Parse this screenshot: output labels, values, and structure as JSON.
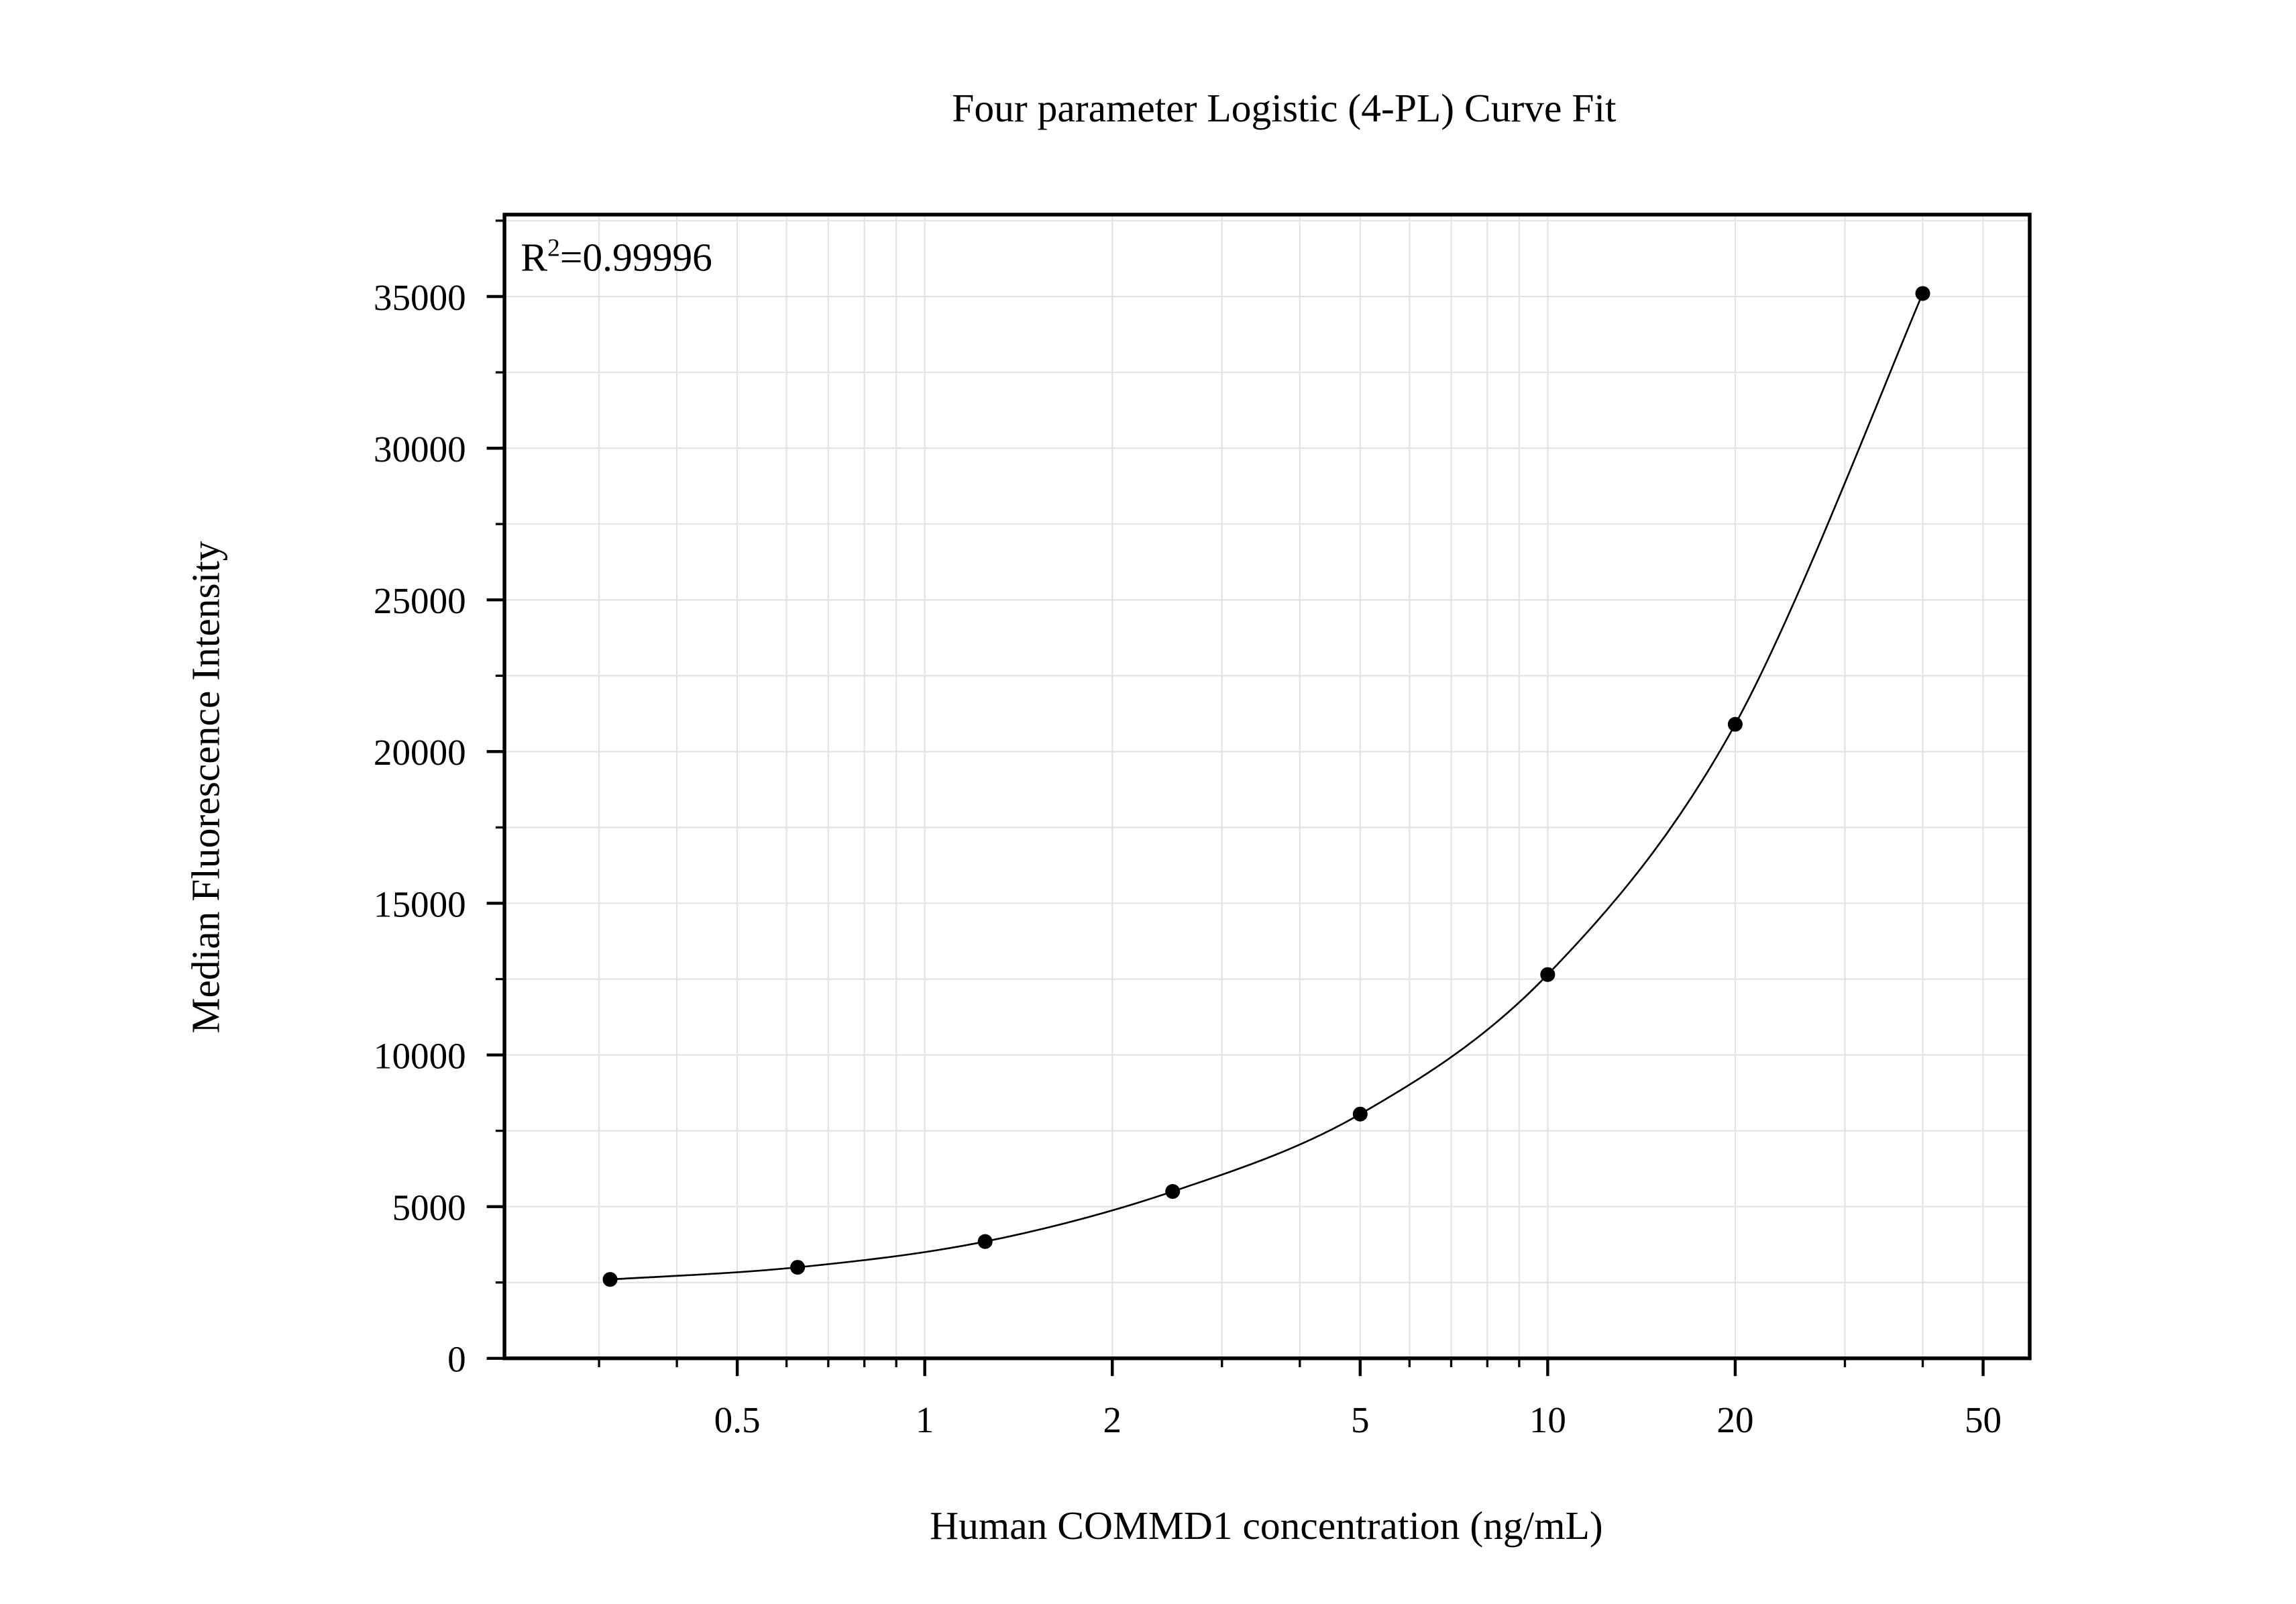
{
  "chart_data": {
    "type": "scatter",
    "title": "Four parameter Logistic (4-PL) Curve Fit",
    "x_label": "Human COMMD1 concentration (ng/mL)",
    "y_label": "Median Fluorescence Intensity",
    "annotation": {
      "base": "R",
      "sup": "2",
      "text": "=0.99996"
    },
    "x": [
      0.3125,
      0.625,
      1.25,
      2.5,
      5,
      10,
      20,
      40
    ],
    "series": [
      {
        "color": "#000000",
        "values": [
          2600,
          3000,
          3850,
          5500,
          8050,
          12650,
          20900,
          35100
        ]
      }
    ],
    "xscale": "log",
    "curve": "smooth",
    "xlim": [
      0.2115,
      59.4
    ],
    "ylim": [
      0,
      37700
    ],
    "xticks": [
      0.5,
      1,
      2,
      5,
      10,
      20,
      50
    ],
    "xminorticks": [
      0.3,
      0.4,
      0.6,
      0.7,
      0.8,
      0.9,
      3,
      4,
      6,
      7,
      8,
      9,
      30,
      40
    ],
    "yticks": [
      0,
      5000,
      10000,
      15000,
      20000,
      25000,
      30000,
      35000
    ],
    "yminorticks": [
      2500,
      7500,
      12500,
      17500,
      22500,
      27500,
      32500,
      37500
    ],
    "grid": true
  }
}
